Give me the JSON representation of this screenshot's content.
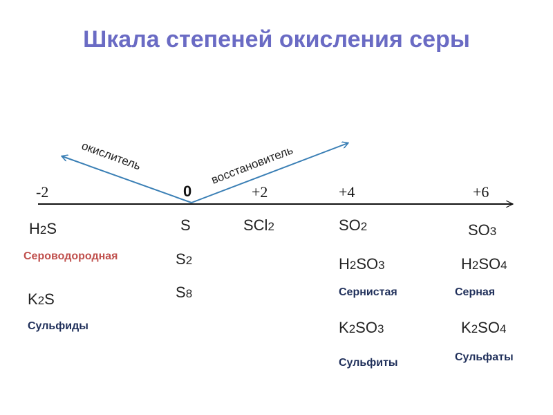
{
  "title": "Шкала степеней окисления серы",
  "axis_ticks": [
    "-2",
    "0",
    "+2",
    "+4",
    "+6"
  ],
  "arrows": {
    "oxidizer": "окислитель",
    "reducer": "восстановитель"
  },
  "columns": {
    "minus2": {
      "h2s": {
        "a": "H",
        "b": "2",
        "c": "S"
      },
      "h2s_name": "Сероводородная",
      "k2s": {
        "a": "K",
        "b": "2",
        "c": "S"
      },
      "k2s_name": "Сульфиды"
    },
    "zero": {
      "s": "S",
      "s2": {
        "a": "S",
        "b": "2"
      },
      "s8": {
        "a": "S",
        "b": "8"
      }
    },
    "plus2": {
      "scl2": {
        "a": "SCl",
        "b": "2"
      }
    },
    "plus4": {
      "so2": {
        "a": "SO",
        "b": "2"
      },
      "h2so3": {
        "a": "H",
        "b": "2",
        "c": "SO",
        "d": "3"
      },
      "h2so3_name": "Сернистая",
      "k2so3": {
        "a": "K",
        "b": "2",
        "c": "SO",
        "d": "3"
      },
      "k2so3_name": "Сульфиты"
    },
    "plus6": {
      "so3": {
        "a": "SO",
        "b": "3"
      },
      "h2so4": {
        "a": "H",
        "b": "2",
        "c": "SO",
        "d": "4"
      },
      "h2so4_name": "Серная",
      "k2so4": {
        "a": "K",
        "b": "2",
        "c": "SO",
        "d": "4"
      },
      "k2so4_name": "Сульфаты"
    }
  },
  "colors": {
    "title": "#6a6bc4",
    "arrow": "#3a7fb5",
    "name_red": "#c0504d",
    "name_navy": "#1f2f5a"
  }
}
